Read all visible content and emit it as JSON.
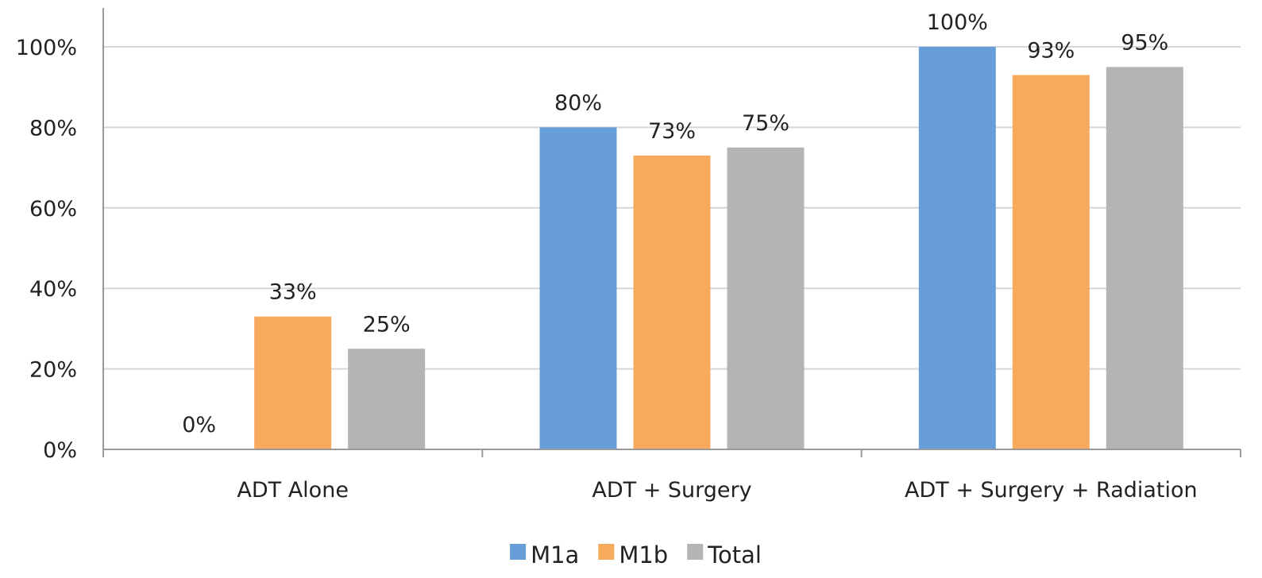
{
  "chart_data": {
    "type": "bar",
    "title": "",
    "xlabel": "",
    "ylabel": "",
    "categories": [
      "ADT Alone",
      "ADT + Surgery",
      "ADT + Surgery + Radiation"
    ],
    "series": [
      {
        "name": "M1a",
        "color": "#679ED9",
        "values": [
          0,
          80,
          100
        ],
        "labels": [
          "0%",
          "80%",
          "100%"
        ]
      },
      {
        "name": "M1b",
        "color": "#F7A95C",
        "values": [
          33,
          73,
          93
        ],
        "labels": [
          "33%",
          "73%",
          "93%"
        ]
      },
      {
        "name": "Total",
        "color": "#B4B4B4",
        "values": [
          25,
          75,
          95
        ],
        "labels": [
          "25%",
          "75%",
          "95%"
        ]
      }
    ],
    "yticks": [
      0,
      20,
      40,
      60,
      80,
      100
    ],
    "ytick_labels": [
      "0%",
      "20%",
      "40%",
      "60%",
      "80%",
      "100%"
    ],
    "ylim": [
      0,
      100
    ],
    "grid": true,
    "legend": "bottom-center"
  }
}
